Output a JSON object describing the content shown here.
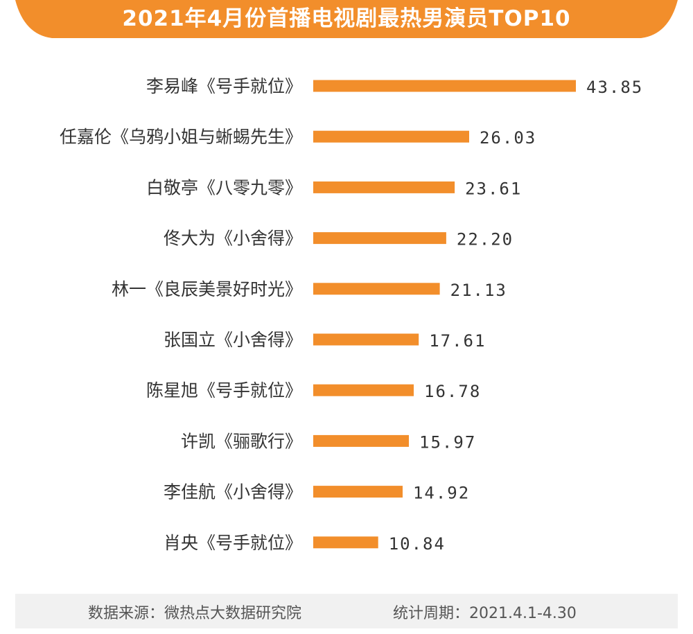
{
  "chart_data": {
    "type": "bar",
    "orientation": "horizontal",
    "title": "2021年4月份首播电视剧最热男演员TOP10",
    "categories": [
      "李易峰《号手就位》",
      "任嘉伦《乌鸦小姐与蜥蜴先生》",
      "白敬亭《八零九零》",
      "佟大为《小舍得》",
      "林一《良辰美景好时光》",
      "张国立《小舍得》",
      "陈星旭《号手就位》",
      "许凯《骊歌行》",
      "李佳航《小舍得》",
      "肖央《号手就位》"
    ],
    "values": [
      43.85,
      26.03,
      23.61,
      22.2,
      21.13,
      17.61,
      16.78,
      15.97,
      14.92,
      10.84
    ],
    "value_labels": [
      "43.85",
      "26.03",
      "23.61",
      "22.20",
      "21.13",
      "17.61",
      "16.78",
      "15.97",
      "14.92",
      "10.84"
    ],
    "xlim": [
      0,
      43.85
    ],
    "grid": false,
    "xlabel": "",
    "ylabel": ""
  },
  "colors": {
    "bar": "#f28e2b",
    "header": "#f28e2b",
    "label": "#333333",
    "value": "#333333",
    "footer_bg": "#f1f1f1"
  },
  "footer": {
    "source": "数据来源：微热点大数据研究院",
    "period": "统计周期：2021.4.1-4.30"
  }
}
